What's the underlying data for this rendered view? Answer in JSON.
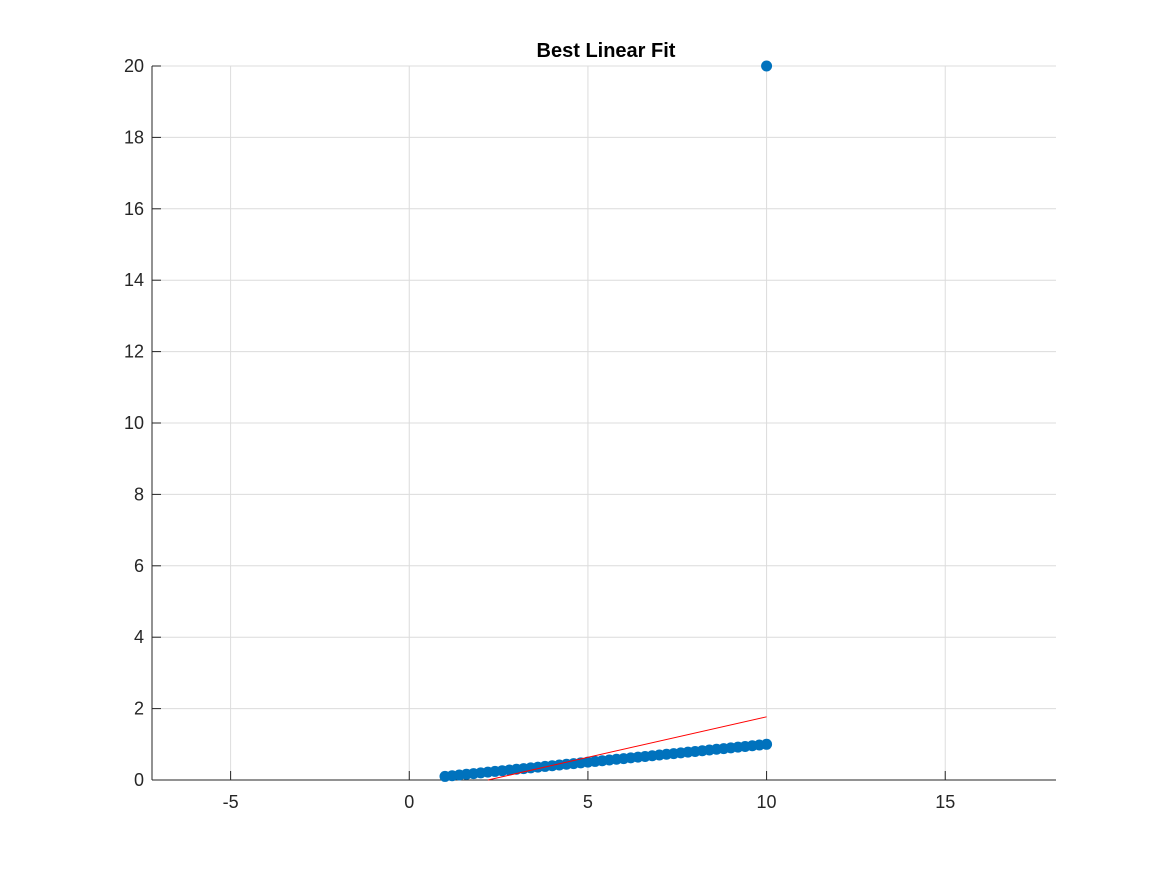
{
  "chart_data": {
    "type": "scatter",
    "title": "Best Linear Fit",
    "xlabel": "",
    "ylabel": "",
    "xlim": [
      -7.2,
      18.1
    ],
    "ylim": [
      0,
      20
    ],
    "xticks": [
      -5,
      0,
      5,
      10,
      15
    ],
    "yticks": [
      0,
      2,
      4,
      6,
      8,
      10,
      12,
      14,
      16,
      18,
      20
    ],
    "xtick_labels": [
      "-5",
      "0",
      "5",
      "10",
      "15"
    ],
    "ytick_labels": [
      "0",
      "2",
      "4",
      "6",
      "8",
      "10",
      "12",
      "14",
      "16",
      "18",
      "20"
    ],
    "grid": true,
    "series": [
      {
        "kind": "scatter",
        "color": "#0072BD",
        "x": [
          1.0,
          1.2,
          1.4,
          1.6,
          1.8,
          2.0,
          2.2,
          2.4,
          2.6,
          2.8,
          3.0,
          3.2,
          3.4,
          3.6,
          3.8,
          4.0,
          4.2,
          4.4,
          4.6,
          4.8,
          5.0,
          5.2,
          5.4,
          5.6,
          5.8,
          6.0,
          6.2,
          6.4,
          6.6,
          6.8,
          7.0,
          7.2,
          7.4,
          7.6,
          7.8,
          8.0,
          8.2,
          8.4,
          8.6,
          8.8,
          9.0,
          9.2,
          9.4,
          9.6,
          9.8,
          10.0,
          10.0
        ],
        "y": [
          0.1,
          0.12,
          0.14,
          0.16,
          0.18,
          0.2,
          0.22,
          0.24,
          0.26,
          0.28,
          0.3,
          0.32,
          0.34,
          0.36,
          0.38,
          0.4,
          0.42,
          0.44,
          0.46,
          0.48,
          0.5,
          0.52,
          0.54,
          0.56,
          0.58,
          0.6,
          0.62,
          0.64,
          0.66,
          0.68,
          0.7,
          0.72,
          0.74,
          0.76,
          0.78,
          0.8,
          0.82,
          0.84,
          0.86,
          0.88,
          0.9,
          0.92,
          0.94,
          0.96,
          0.98,
          1.0,
          20.0
        ]
      },
      {
        "kind": "line",
        "color": "#FF0000",
        "x": [
          2.2,
          10.0
        ],
        "y": [
          0.0,
          1.77
        ]
      }
    ]
  }
}
